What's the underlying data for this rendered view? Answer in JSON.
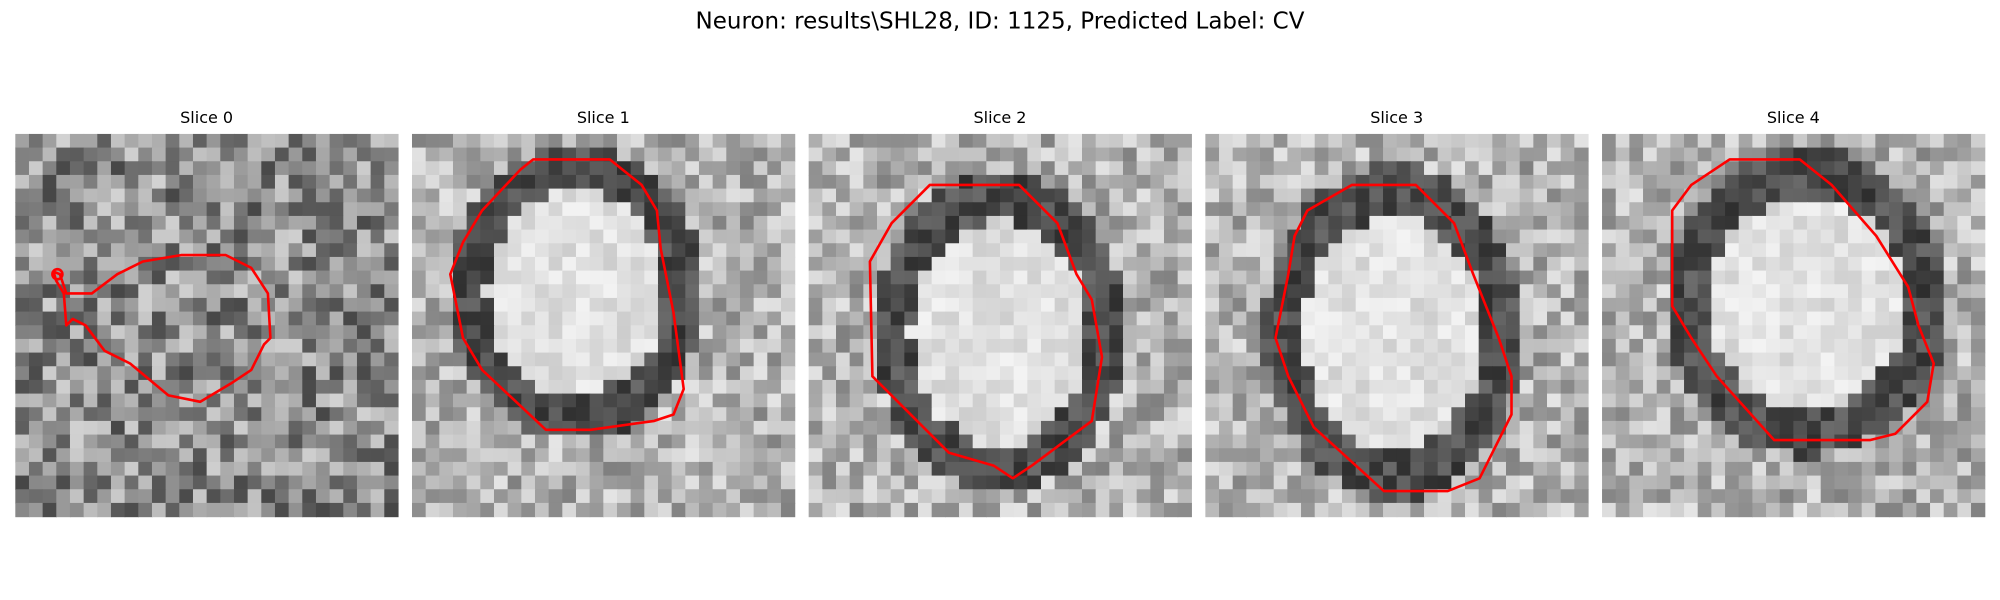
{
  "header": {
    "title": "Neuron: results\\SHL28, ID: 1125, Predicted Label: CV"
  },
  "panels": [
    {
      "title": "Slice 0"
    },
    {
      "title": "Slice 1"
    },
    {
      "title": "Slice 2"
    },
    {
      "title": "Slice 3"
    },
    {
      "title": "Slice 4"
    }
  ]
}
